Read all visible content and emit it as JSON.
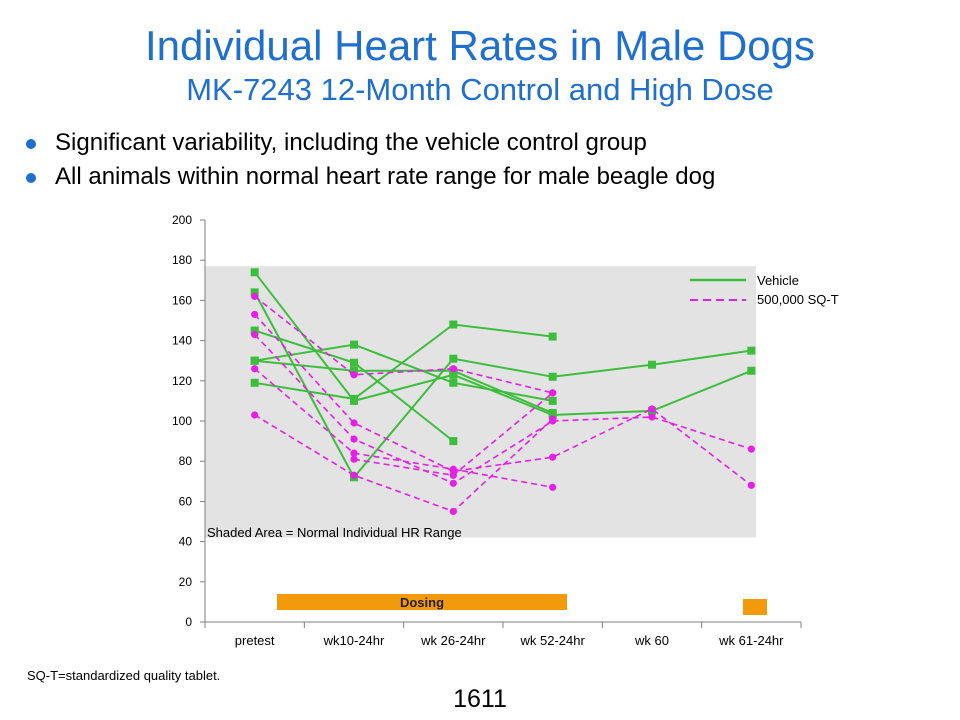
{
  "title": {
    "line1": "Individual Heart Rates in Male Dogs",
    "line2": "MK-7243 12-Month Control and High Dose"
  },
  "bullets": [
    "Significant variability, including the vehicle control group",
    "All animals within normal heart rate range for male beagle dog"
  ],
  "colors": {
    "title": "#1f6fcf",
    "bullet": "#1f6fcf",
    "vehicle": "#3cbe3c",
    "treated": "#e61ee6",
    "shade": "#e3e3e3",
    "dosing": "#f39a0c"
  },
  "chart_data": {
    "type": "line",
    "title": "",
    "xlabel": "",
    "ylabel": "",
    "categories": [
      "pretest",
      "wk10-24hr",
      "wk 26-24hr",
      "wk 52-24hr",
      "wk 60",
      "wk 61-24hr"
    ],
    "ylim": [
      0,
      200
    ],
    "yticks": [
      0,
      20,
      40,
      60,
      80,
      100,
      120,
      140,
      160,
      180,
      200
    ],
    "grid": false,
    "legend": {
      "position": "top-right",
      "entries": [
        {
          "name": "Vehicle",
          "style": "solid",
          "marker": "square"
        },
        {
          "name": "500,000 SQ-T",
          "style": "dashed",
          "marker": "circle"
        }
      ]
    },
    "shaded_area": {
      "label": "Shaded Area = Normal Individual  HR Range",
      "y_range": [
        42,
        177
      ]
    },
    "dosing_bar": {
      "label": "Dosing"
    },
    "series": [
      {
        "group": "Vehicle",
        "values": [
          174,
          110,
          123,
          103,
          105,
          125
        ]
      },
      {
        "group": "Vehicle",
        "values": [
          164,
          72,
          131,
          122,
          128,
          135
        ]
      },
      {
        "group": "Vehicle",
        "values": [
          145,
          129,
          90,
          null,
          null,
          null
        ]
      },
      {
        "group": "Vehicle",
        "values": [
          130,
          138,
          119,
          110,
          null,
          null
        ]
      },
      {
        "group": "Vehicle",
        "values": [
          119,
          111,
          148,
          142,
          null,
          null
        ]
      },
      {
        "group": "Vehicle",
        "values": [
          130,
          125,
          125,
          104,
          null,
          null
        ]
      },
      {
        "group": "500,000 SQ-T",
        "values": [
          162,
          123,
          126,
          114,
          null,
          null
        ]
      },
      {
        "group": "500,000 SQ-T",
        "values": [
          153,
          99,
          75,
          82,
          106,
          68
        ]
      },
      {
        "group": "500,000 SQ-T",
        "values": [
          143,
          91,
          69,
          100,
          102,
          86
        ]
      },
      {
        "group": "500,000 SQ-T",
        "values": [
          126,
          84,
          76,
          67,
          null,
          null
        ]
      },
      {
        "group": "500,000 SQ-T",
        "values": [
          103,
          73,
          55,
          101,
          null,
          null
        ]
      },
      {
        "group": "500,000 SQ-T",
        "values": [
          null,
          81,
          73,
          114,
          null,
          null
        ]
      }
    ]
  },
  "footnote": "SQ-T=standardized quality tablet.",
  "page_number": "1611"
}
